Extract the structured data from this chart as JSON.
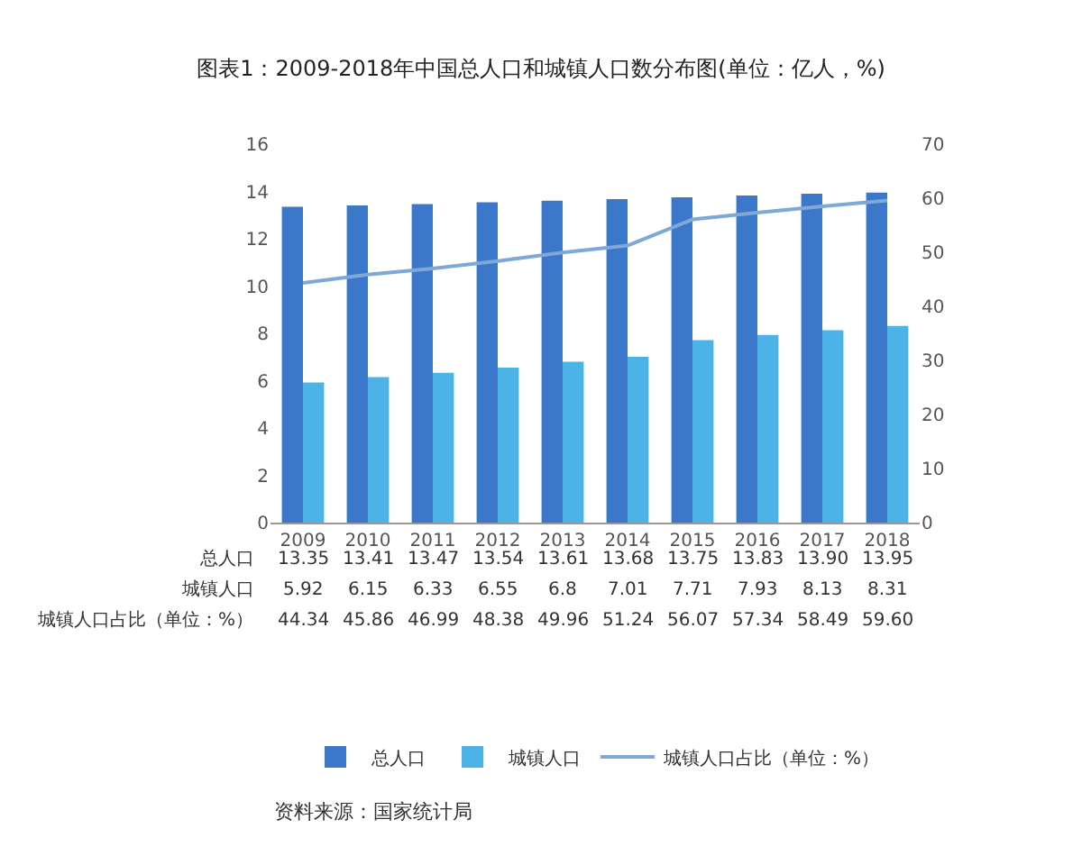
{
  "chart_data": {
    "type": "bar",
    "title": "图表1：2009-2018年中国总人口和城镇人口数分布图(单位：亿人，%)",
    "categories": [
      "2009",
      "2010",
      "2011",
      "2012",
      "2013",
      "2014",
      "2015",
      "2016",
      "2017",
      "2018"
    ],
    "series": [
      {
        "name": "总人口",
        "color": "#3b78c9",
        "values": [
          13.35,
          13.41,
          13.47,
          13.54,
          13.61,
          13.68,
          13.75,
          13.83,
          13.9,
          13.95
        ],
        "value_labels": [
          "13.35",
          "13.41",
          "13.47",
          "13.54",
          "13.61",
          "13.68",
          "13.75",
          "13.83",
          "13.90",
          "13.95"
        ]
      },
      {
        "name": "城镇人口",
        "color": "#4bb3e6",
        "values": [
          5.92,
          6.15,
          6.33,
          6.55,
          6.8,
          7.01,
          7.71,
          7.93,
          8.13,
          8.31
        ],
        "value_labels": [
          "5.92",
          "6.15",
          "6.33",
          "6.55",
          "6.8",
          "7.01",
          "7.71",
          "7.93",
          "8.13",
          "8.31"
        ]
      },
      {
        "name": "城镇人口占比（单位：%）",
        "type": "line",
        "axis": "y2",
        "color": "#7ea8d8",
        "values": [
          44.34,
          45.86,
          46.99,
          48.38,
          49.96,
          51.24,
          56.07,
          57.34,
          58.49,
          59.6
        ],
        "value_labels": [
          "44.34",
          "45.86",
          "46.99",
          "48.38",
          "49.96",
          "51.24",
          "56.07",
          "57.34",
          "58.49",
          "59.60"
        ]
      }
    ],
    "ylim": [
      0,
      16
    ],
    "yticks": [
      0,
      2,
      4,
      6,
      8,
      10,
      12,
      14,
      16
    ],
    "y2lim": [
      0,
      70
    ],
    "y2ticks": [
      0,
      10,
      20,
      30,
      40,
      50,
      60,
      70
    ],
    "grid": false,
    "legend": "bottom",
    "marker": "none",
    "line_style": "solid",
    "annotations": [
      "资料来源：国家统计局"
    ]
  }
}
